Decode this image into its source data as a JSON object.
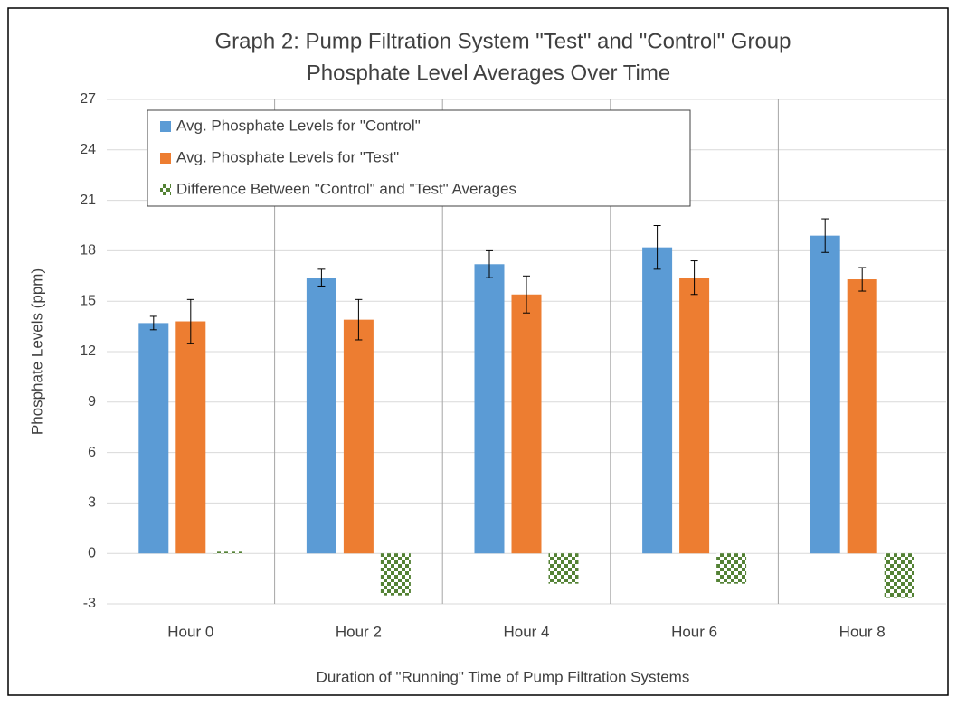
{
  "chart_data": {
    "type": "bar",
    "title": [
      "Graph 2: Pump Filtration System \"Test\" and \"Control\" Group",
      "Phosphate Level Averages Over Time"
    ],
    "x_label": "Duration of \"Running\" Time of Pump Filtration Systems",
    "y_label": "Phosphate Levels (ppm)",
    "categories": [
      "Hour 0",
      "Hour 2",
      "Hour 4",
      "Hour 6",
      "Hour 8"
    ],
    "series": [
      {
        "name": "Avg. Phosphate Levels for \"Control\"",
        "color": "#5b9bd5",
        "values": [
          13.7,
          16.4,
          17.2,
          18.2,
          18.9
        ],
        "errors": [
          0.4,
          0.5,
          0.8,
          1.3,
          1.0
        ]
      },
      {
        "name": "Avg. Phosphate Levels for \"Test\"",
        "color": "#ed7d31",
        "values": [
          13.8,
          13.9,
          15.4,
          16.4,
          16.3
        ],
        "errors": [
          1.3,
          1.2,
          1.1,
          1.0,
          0.7
        ]
      },
      {
        "name": "Difference Between \"Control\" and \"Test\" Averages",
        "color": "#548235",
        "pattern": "checker",
        "values": [
          0.1,
          -2.5,
          -1.8,
          -1.8,
          -2.6
        ]
      }
    ],
    "ylim": [
      -3,
      27
    ],
    "yticks": [
      -3,
      0,
      3,
      6,
      9,
      12,
      15,
      18,
      21,
      24,
      27
    ],
    "grid": true,
    "legend": "upper left"
  }
}
